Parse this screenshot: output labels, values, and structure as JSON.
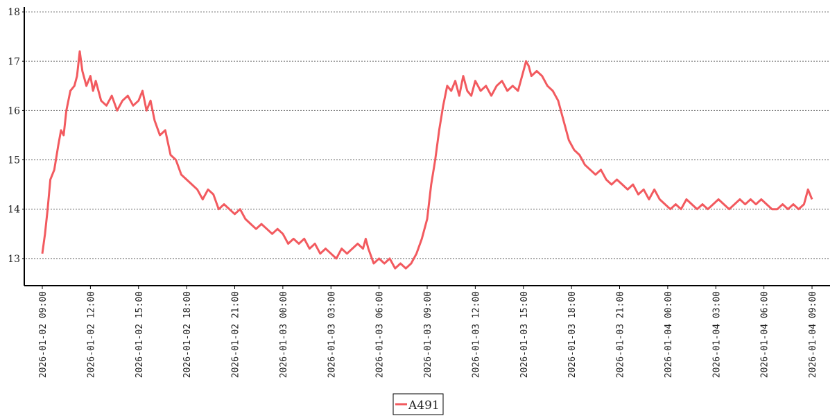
{
  "chart_data": {
    "type": "line",
    "title": "",
    "xlabel": "",
    "ylabel": "",
    "ylim": [
      12.45,
      18.1
    ],
    "y_ticks": [
      13,
      14,
      15,
      16,
      17,
      18
    ],
    "grid": "horizontal dotted",
    "legend_position": "bottom-center",
    "x_range": [
      "2026-01-02 09:00",
      "2026-01-04 09:00"
    ],
    "x_tick_labels": [
      "2026-01-02 09:00",
      "2026-01-02 12:00",
      "2026-01-02 15:00",
      "2026-01-02 18:00",
      "2026-01-02 21:00",
      "2026-01-03 00:00",
      "2026-01-03 03:00",
      "2026-01-03 06:00",
      "2026-01-03 09:00",
      "2026-01-03 12:00",
      "2026-01-03 15:00",
      "2026-01-03 18:00",
      "2026-01-03 21:00",
      "2026-01-04 00:00",
      "2026-01-04 03:00",
      "2026-01-04 06:00",
      "2026-01-04 09:00"
    ],
    "series": [
      {
        "name": "A491",
        "color": "#f25a5f",
        "points": [
          [
            "2026-01-02 09:00",
            13.1
          ],
          [
            "2026-01-02 09:10",
            13.5
          ],
          [
            "2026-01-02 09:20",
            14.0
          ],
          [
            "2026-01-02 09:30",
            14.6
          ],
          [
            "2026-01-02 09:45",
            14.8
          ],
          [
            "2026-01-02 10:00",
            15.3
          ],
          [
            "2026-01-02 10:10",
            15.6
          ],
          [
            "2026-01-02 10:20",
            15.5
          ],
          [
            "2026-01-02 10:30",
            16.0
          ],
          [
            "2026-01-02 10:45",
            16.4
          ],
          [
            "2026-01-02 11:00",
            16.5
          ],
          [
            "2026-01-02 11:10",
            16.7
          ],
          [
            "2026-01-02 11:20",
            17.2
          ],
          [
            "2026-01-02 11:30",
            16.8
          ],
          [
            "2026-01-02 11:45",
            16.5
          ],
          [
            "2026-01-02 12:00",
            16.7
          ],
          [
            "2026-01-02 12:10",
            16.4
          ],
          [
            "2026-01-02 12:20",
            16.6
          ],
          [
            "2026-01-02 12:40",
            16.2
          ],
          [
            "2026-01-02 13:00",
            16.1
          ],
          [
            "2026-01-02 13:20",
            16.3
          ],
          [
            "2026-01-02 13:40",
            16.0
          ],
          [
            "2026-01-02 14:00",
            16.2
          ],
          [
            "2026-01-02 14:20",
            16.3
          ],
          [
            "2026-01-02 14:40",
            16.1
          ],
          [
            "2026-01-02 15:00",
            16.2
          ],
          [
            "2026-01-02 15:15",
            16.4
          ],
          [
            "2026-01-02 15:30",
            16.0
          ],
          [
            "2026-01-02 15:45",
            16.2
          ],
          [
            "2026-01-02 16:00",
            15.8
          ],
          [
            "2026-01-02 16:20",
            15.5
          ],
          [
            "2026-01-02 16:40",
            15.6
          ],
          [
            "2026-01-02 17:00",
            15.1
          ],
          [
            "2026-01-02 17:20",
            15.0
          ],
          [
            "2026-01-02 17:40",
            14.7
          ],
          [
            "2026-01-02 18:00",
            14.6
          ],
          [
            "2026-01-02 18:20",
            14.5
          ],
          [
            "2026-01-02 18:40",
            14.4
          ],
          [
            "2026-01-02 19:00",
            14.2
          ],
          [
            "2026-01-02 19:20",
            14.4
          ],
          [
            "2026-01-02 19:40",
            14.3
          ],
          [
            "2026-01-02 20:00",
            14.0
          ],
          [
            "2026-01-02 20:20",
            14.1
          ],
          [
            "2026-01-02 20:40",
            14.0
          ],
          [
            "2026-01-02 21:00",
            13.9
          ],
          [
            "2026-01-02 21:20",
            14.0
          ],
          [
            "2026-01-02 21:40",
            13.8
          ],
          [
            "2026-01-02 22:00",
            13.7
          ],
          [
            "2026-01-02 22:20",
            13.6
          ],
          [
            "2026-01-02 22:40",
            13.7
          ],
          [
            "2026-01-02 23:00",
            13.6
          ],
          [
            "2026-01-02 23:20",
            13.5
          ],
          [
            "2026-01-02 23:40",
            13.6
          ],
          [
            "2026-01-03 00:00",
            13.5
          ],
          [
            "2026-01-03 00:20",
            13.3
          ],
          [
            "2026-01-03 00:40",
            13.4
          ],
          [
            "2026-01-03 01:00",
            13.3
          ],
          [
            "2026-01-03 01:20",
            13.4
          ],
          [
            "2026-01-03 01:40",
            13.2
          ],
          [
            "2026-01-03 02:00",
            13.3
          ],
          [
            "2026-01-03 02:20",
            13.1
          ],
          [
            "2026-01-03 02:40",
            13.2
          ],
          [
            "2026-01-03 03:00",
            13.1
          ],
          [
            "2026-01-03 03:20",
            13.0
          ],
          [
            "2026-01-03 03:40",
            13.2
          ],
          [
            "2026-01-03 04:00",
            13.1
          ],
          [
            "2026-01-03 04:20",
            13.2
          ],
          [
            "2026-01-03 04:40",
            13.3
          ],
          [
            "2026-01-03 05:00",
            13.2
          ],
          [
            "2026-01-03 05:10",
            13.4
          ],
          [
            "2026-01-03 05:20",
            13.2
          ],
          [
            "2026-01-03 05:40",
            12.9
          ],
          [
            "2026-01-03 06:00",
            13.0
          ],
          [
            "2026-01-03 06:20",
            12.9
          ],
          [
            "2026-01-03 06:40",
            13.0
          ],
          [
            "2026-01-03 07:00",
            12.8
          ],
          [
            "2026-01-03 07:20",
            12.9
          ],
          [
            "2026-01-03 07:40",
            12.8
          ],
          [
            "2026-01-03 08:00",
            12.9
          ],
          [
            "2026-01-03 08:20",
            13.1
          ],
          [
            "2026-01-03 08:40",
            13.4
          ],
          [
            "2026-01-03 09:00",
            13.8
          ],
          [
            "2026-01-03 09:15",
            14.5
          ],
          [
            "2026-01-03 09:30",
            15.0
          ],
          [
            "2026-01-03 09:45",
            15.6
          ],
          [
            "2026-01-03 10:00",
            16.1
          ],
          [
            "2026-01-03 10:15",
            16.5
          ],
          [
            "2026-01-03 10:30",
            16.4
          ],
          [
            "2026-01-03 10:45",
            16.6
          ],
          [
            "2026-01-03 11:00",
            16.3
          ],
          [
            "2026-01-03 11:15",
            16.7
          ],
          [
            "2026-01-03 11:30",
            16.4
          ],
          [
            "2026-01-03 11:45",
            16.3
          ],
          [
            "2026-01-03 12:00",
            16.6
          ],
          [
            "2026-01-03 12:20",
            16.4
          ],
          [
            "2026-01-03 12:40",
            16.5
          ],
          [
            "2026-01-03 13:00",
            16.3
          ],
          [
            "2026-01-03 13:20",
            16.5
          ],
          [
            "2026-01-03 13:40",
            16.6
          ],
          [
            "2026-01-03 14:00",
            16.4
          ],
          [
            "2026-01-03 14:20",
            16.5
          ],
          [
            "2026-01-03 14:40",
            16.4
          ],
          [
            "2026-01-03 15:00",
            16.8
          ],
          [
            "2026-01-03 15:10",
            17.0
          ],
          [
            "2026-01-03 15:20",
            16.9
          ],
          [
            "2026-01-03 15:30",
            16.7
          ],
          [
            "2026-01-03 15:50",
            16.8
          ],
          [
            "2026-01-03 16:10",
            16.7
          ],
          [
            "2026-01-03 16:30",
            16.5
          ],
          [
            "2026-01-03 16:50",
            16.4
          ],
          [
            "2026-01-03 17:10",
            16.2
          ],
          [
            "2026-01-03 17:30",
            15.8
          ],
          [
            "2026-01-03 17:50",
            15.4
          ],
          [
            "2026-01-03 18:10",
            15.2
          ],
          [
            "2026-01-03 18:30",
            15.1
          ],
          [
            "2026-01-03 18:50",
            14.9
          ],
          [
            "2026-01-03 19:10",
            14.8
          ],
          [
            "2026-01-03 19:30",
            14.7
          ],
          [
            "2026-01-03 19:50",
            14.8
          ],
          [
            "2026-01-03 20:10",
            14.6
          ],
          [
            "2026-01-03 20:30",
            14.5
          ],
          [
            "2026-01-03 20:50",
            14.6
          ],
          [
            "2026-01-03 21:10",
            14.5
          ],
          [
            "2026-01-03 21:30",
            14.4
          ],
          [
            "2026-01-03 21:50",
            14.5
          ],
          [
            "2026-01-03 22:10",
            14.3
          ],
          [
            "2026-01-03 22:30",
            14.4
          ],
          [
            "2026-01-03 22:50",
            14.2
          ],
          [
            "2026-01-03 23:10",
            14.4
          ],
          [
            "2026-01-03 23:30",
            14.2
          ],
          [
            "2026-01-03 23:50",
            14.1
          ],
          [
            "2026-01-04 00:10",
            14.0
          ],
          [
            "2026-01-04 00:30",
            14.1
          ],
          [
            "2026-01-04 00:50",
            14.0
          ],
          [
            "2026-01-04 01:10",
            14.2
          ],
          [
            "2026-01-04 01:30",
            14.1
          ],
          [
            "2026-01-04 01:50",
            14.0
          ],
          [
            "2026-01-04 02:10",
            14.1
          ],
          [
            "2026-01-04 02:30",
            14.0
          ],
          [
            "2026-01-04 02:50",
            14.1
          ],
          [
            "2026-01-04 03:10",
            14.2
          ],
          [
            "2026-01-04 03:30",
            14.1
          ],
          [
            "2026-01-04 03:50",
            14.0
          ],
          [
            "2026-01-04 04:10",
            14.1
          ],
          [
            "2026-01-04 04:30",
            14.2
          ],
          [
            "2026-01-04 04:50",
            14.1
          ],
          [
            "2026-01-04 05:10",
            14.2
          ],
          [
            "2026-01-04 05:30",
            14.1
          ],
          [
            "2026-01-04 05:50",
            14.2
          ],
          [
            "2026-01-04 06:10",
            14.1
          ],
          [
            "2026-01-04 06:30",
            14.0
          ],
          [
            "2026-01-04 06:50",
            14.0
          ],
          [
            "2026-01-04 07:10",
            14.1
          ],
          [
            "2026-01-04 07:30",
            14.0
          ],
          [
            "2026-01-04 07:50",
            14.1
          ],
          [
            "2026-01-04 08:10",
            14.0
          ],
          [
            "2026-01-04 08:30",
            14.1
          ],
          [
            "2026-01-04 08:45",
            14.4
          ],
          [
            "2026-01-04 09:00",
            14.2
          ]
        ]
      }
    ]
  }
}
